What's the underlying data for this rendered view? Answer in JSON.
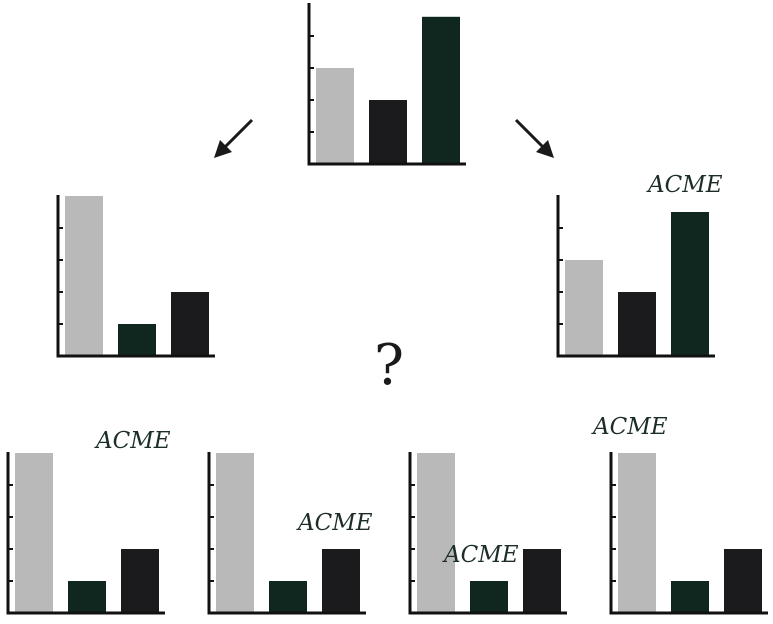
{
  "colors": {
    "light_gray": "#b9b9b9",
    "dark_green": "#10271f",
    "black": "#1b1b1d",
    "axis": "#111111",
    "label": "#1c2e26"
  },
  "ymax": 5,
  "panels": [
    {
      "id": "top",
      "bars": [
        {
          "value": 3,
          "color": "light_gray"
        },
        {
          "value": 2,
          "color": "black"
        },
        {
          "value": 4.6,
          "color": "dark_green"
        }
      ]
    },
    {
      "id": "left",
      "bars": [
        {
          "value": 5,
          "color": "light_gray"
        },
        {
          "value": 1,
          "color": "dark_green"
        },
        {
          "value": 2,
          "color": "black"
        }
      ]
    },
    {
      "id": "right",
      "bars": [
        {
          "value": 3,
          "color": "light_gray"
        },
        {
          "value": 2,
          "color": "black"
        },
        {
          "value": 4.5,
          "color": "dark_green"
        }
      ]
    },
    {
      "id": "o1",
      "bars": [
        {
          "value": 5,
          "color": "light_gray"
        },
        {
          "value": 1,
          "color": "dark_green"
        },
        {
          "value": 2,
          "color": "black"
        }
      ]
    },
    {
      "id": "o2",
      "bars": [
        {
          "value": 5,
          "color": "light_gray"
        },
        {
          "value": 1,
          "color": "dark_green"
        },
        {
          "value": 2,
          "color": "black"
        }
      ]
    },
    {
      "id": "o3",
      "bars": [
        {
          "value": 5,
          "color": "light_gray"
        },
        {
          "value": 1,
          "color": "dark_green"
        },
        {
          "value": 2,
          "color": "black"
        }
      ]
    },
    {
      "id": "o4",
      "bars": [
        {
          "value": 5,
          "color": "light_gray"
        },
        {
          "value": 1,
          "color": "dark_green"
        },
        {
          "value": 2,
          "color": "black"
        }
      ]
    }
  ],
  "labels": {
    "right": "ACME",
    "o1": "ACME",
    "o2": "ACME",
    "o3": "ACME",
    "o4": "ACME"
  },
  "question_mark": "?",
  "arrow_icons": [
    "arrow-down-left-icon",
    "arrow-down-right-icon"
  ]
}
